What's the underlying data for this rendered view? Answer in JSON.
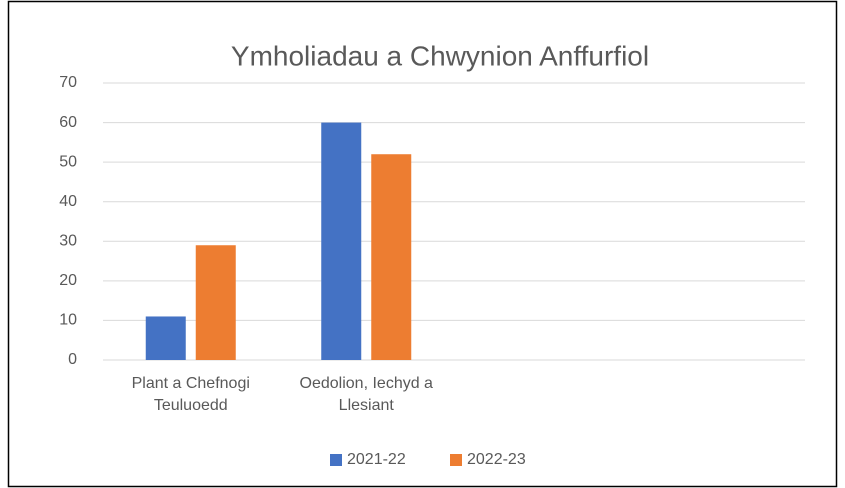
{
  "chart_data": {
    "type": "bar",
    "title": "Ymholiadau a Chwynion Anffurfiol",
    "categories": [
      "Plant a Chefnogi Teuluoedd",
      "Oedolion, Iechyd a Llesiant",
      null,
      null
    ],
    "series": [
      {
        "name": "2021-22",
        "color": "#4472c4",
        "values": [
          11,
          60,
          null,
          null
        ]
      },
      {
        "name": "2022-23",
        "color": "#ed7d31",
        "values": [
          29,
          52,
          null,
          null
        ]
      }
    ],
    "ylim": [
      0,
      70
    ],
    "yticks": [
      0,
      10,
      20,
      30,
      40,
      50,
      60,
      70
    ],
    "grid": true,
    "legend": "bottom"
  }
}
